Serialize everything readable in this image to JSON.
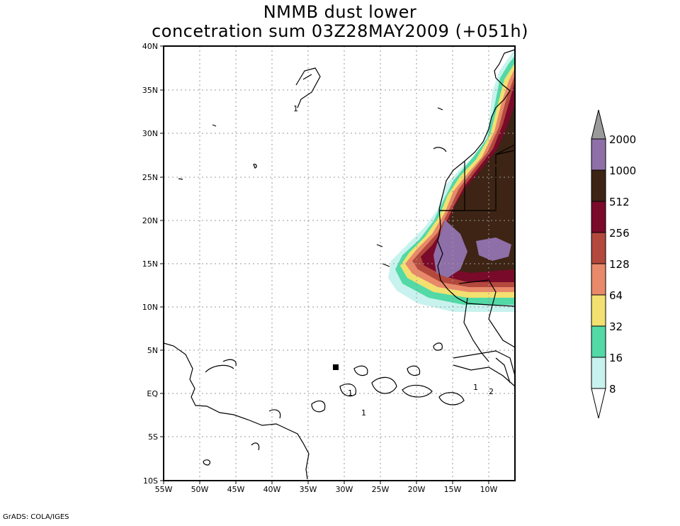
{
  "title_line1": "NMMB dust lower",
  "title_line2": "concetration sum 03Z28MAY2009 (+051h)",
  "footer": "GrADS: COLA/IGES",
  "lat_labels": [
    "40N",
    "35N",
    "30N",
    "25N",
    "20N",
    "15N",
    "10N",
    "5N",
    "EQ",
    "5S",
    "10S"
  ],
  "lon_labels": [
    "55W",
    "50W",
    "45W",
    "40W",
    "35W",
    "30W",
    "25W",
    "20W",
    "15W",
    "10W"
  ],
  "colorbar": {
    "levels": [
      "2000",
      "1000",
      "512",
      "256",
      "128",
      "64",
      "32",
      "16",
      "8"
    ],
    "colors": [
      "#9a9a9a",
      "#8f6fa8",
      "#3d2414",
      "#7a0a2a",
      "#b3483d",
      "#e8896a",
      "#f2e071",
      "#52d9a6",
      "#c8f2ee",
      "#ffffff"
    ]
  },
  "contour_labels": [
    "1",
    "1",
    "1",
    "1",
    "2"
  ],
  "colors": {
    "ocean": "#ffffff",
    "grid": "#9a9a9a",
    "coast": "#000000"
  }
}
